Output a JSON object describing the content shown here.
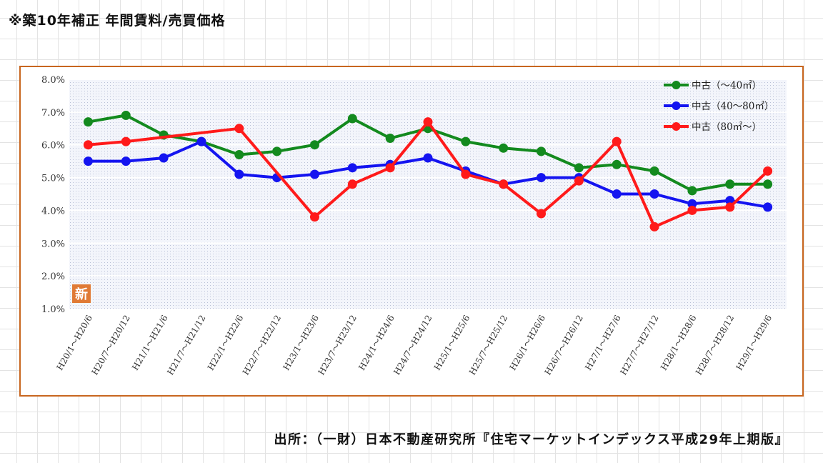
{
  "page": {
    "title": "※築10年補正 年間賃料/売買価格",
    "source": "出所：（一財）日本不動産研究所『住宅マーケットインデックス平成29年上期版』"
  },
  "badge": {
    "text": "新"
  },
  "colors": {
    "chart_border": "#c8661f",
    "green": "#138a1e",
    "blue": "#1414f0",
    "red": "#ff1a1a",
    "badge": "#e07a35"
  },
  "chart_data": {
    "type": "line",
    "title": "",
    "xlabel": "",
    "ylabel": "",
    "ylim": [
      1.0,
      8.0
    ],
    "yticks": [
      "1.0%",
      "2.0%",
      "3.0%",
      "4.0%",
      "5.0%",
      "6.0%",
      "7.0%",
      "8.0%"
    ],
    "grid": true,
    "legend_position": "top-right",
    "categories": [
      "H20/1～H20/6",
      "H20/7～H20/12",
      "H21/1～H21/6",
      "H21/7～H21/12",
      "H22/1～H22/6",
      "H22/7～H22/12",
      "H23/1～H23/6",
      "H23/7～H23/12",
      "H24/1～H24/6",
      "H24/7～H24/12",
      "H25/1～H25/6",
      "H25/7～H25/12",
      "H26/1～H26/6",
      "H26/7～H26/12",
      "H27/1～H27/6",
      "H27/7～H27/12",
      "H28/1～H28/6",
      "H28/7～H28/12",
      "H29/1～H29/6"
    ],
    "series": [
      {
        "name": "中古（～40㎡）",
        "color": "#138a1e",
        "values": [
          6.7,
          6.9,
          6.3,
          6.1,
          5.7,
          5.8,
          6.0,
          6.8,
          6.2,
          6.5,
          6.1,
          5.9,
          5.8,
          5.3,
          5.4,
          5.2,
          4.6,
          4.8,
          4.8
        ]
      },
      {
        "name": "中古（40～80㎡）",
        "color": "#1414f0",
        "values": [
          5.5,
          5.5,
          5.6,
          6.1,
          5.1,
          5.0,
          5.1,
          5.3,
          5.4,
          5.6,
          5.2,
          4.8,
          5.0,
          5.0,
          4.5,
          4.5,
          4.2,
          4.3,
          4.1
        ]
      },
      {
        "name": "中古（80㎡～）",
        "color": "#ff1a1a",
        "values": [
          6.0,
          6.1,
          null,
          null,
          6.5,
          null,
          3.8,
          4.8,
          5.3,
          6.7,
          5.1,
          4.8,
          3.9,
          4.9,
          6.1,
          3.5,
          4.0,
          4.1,
          5.2
        ]
      }
    ]
  }
}
